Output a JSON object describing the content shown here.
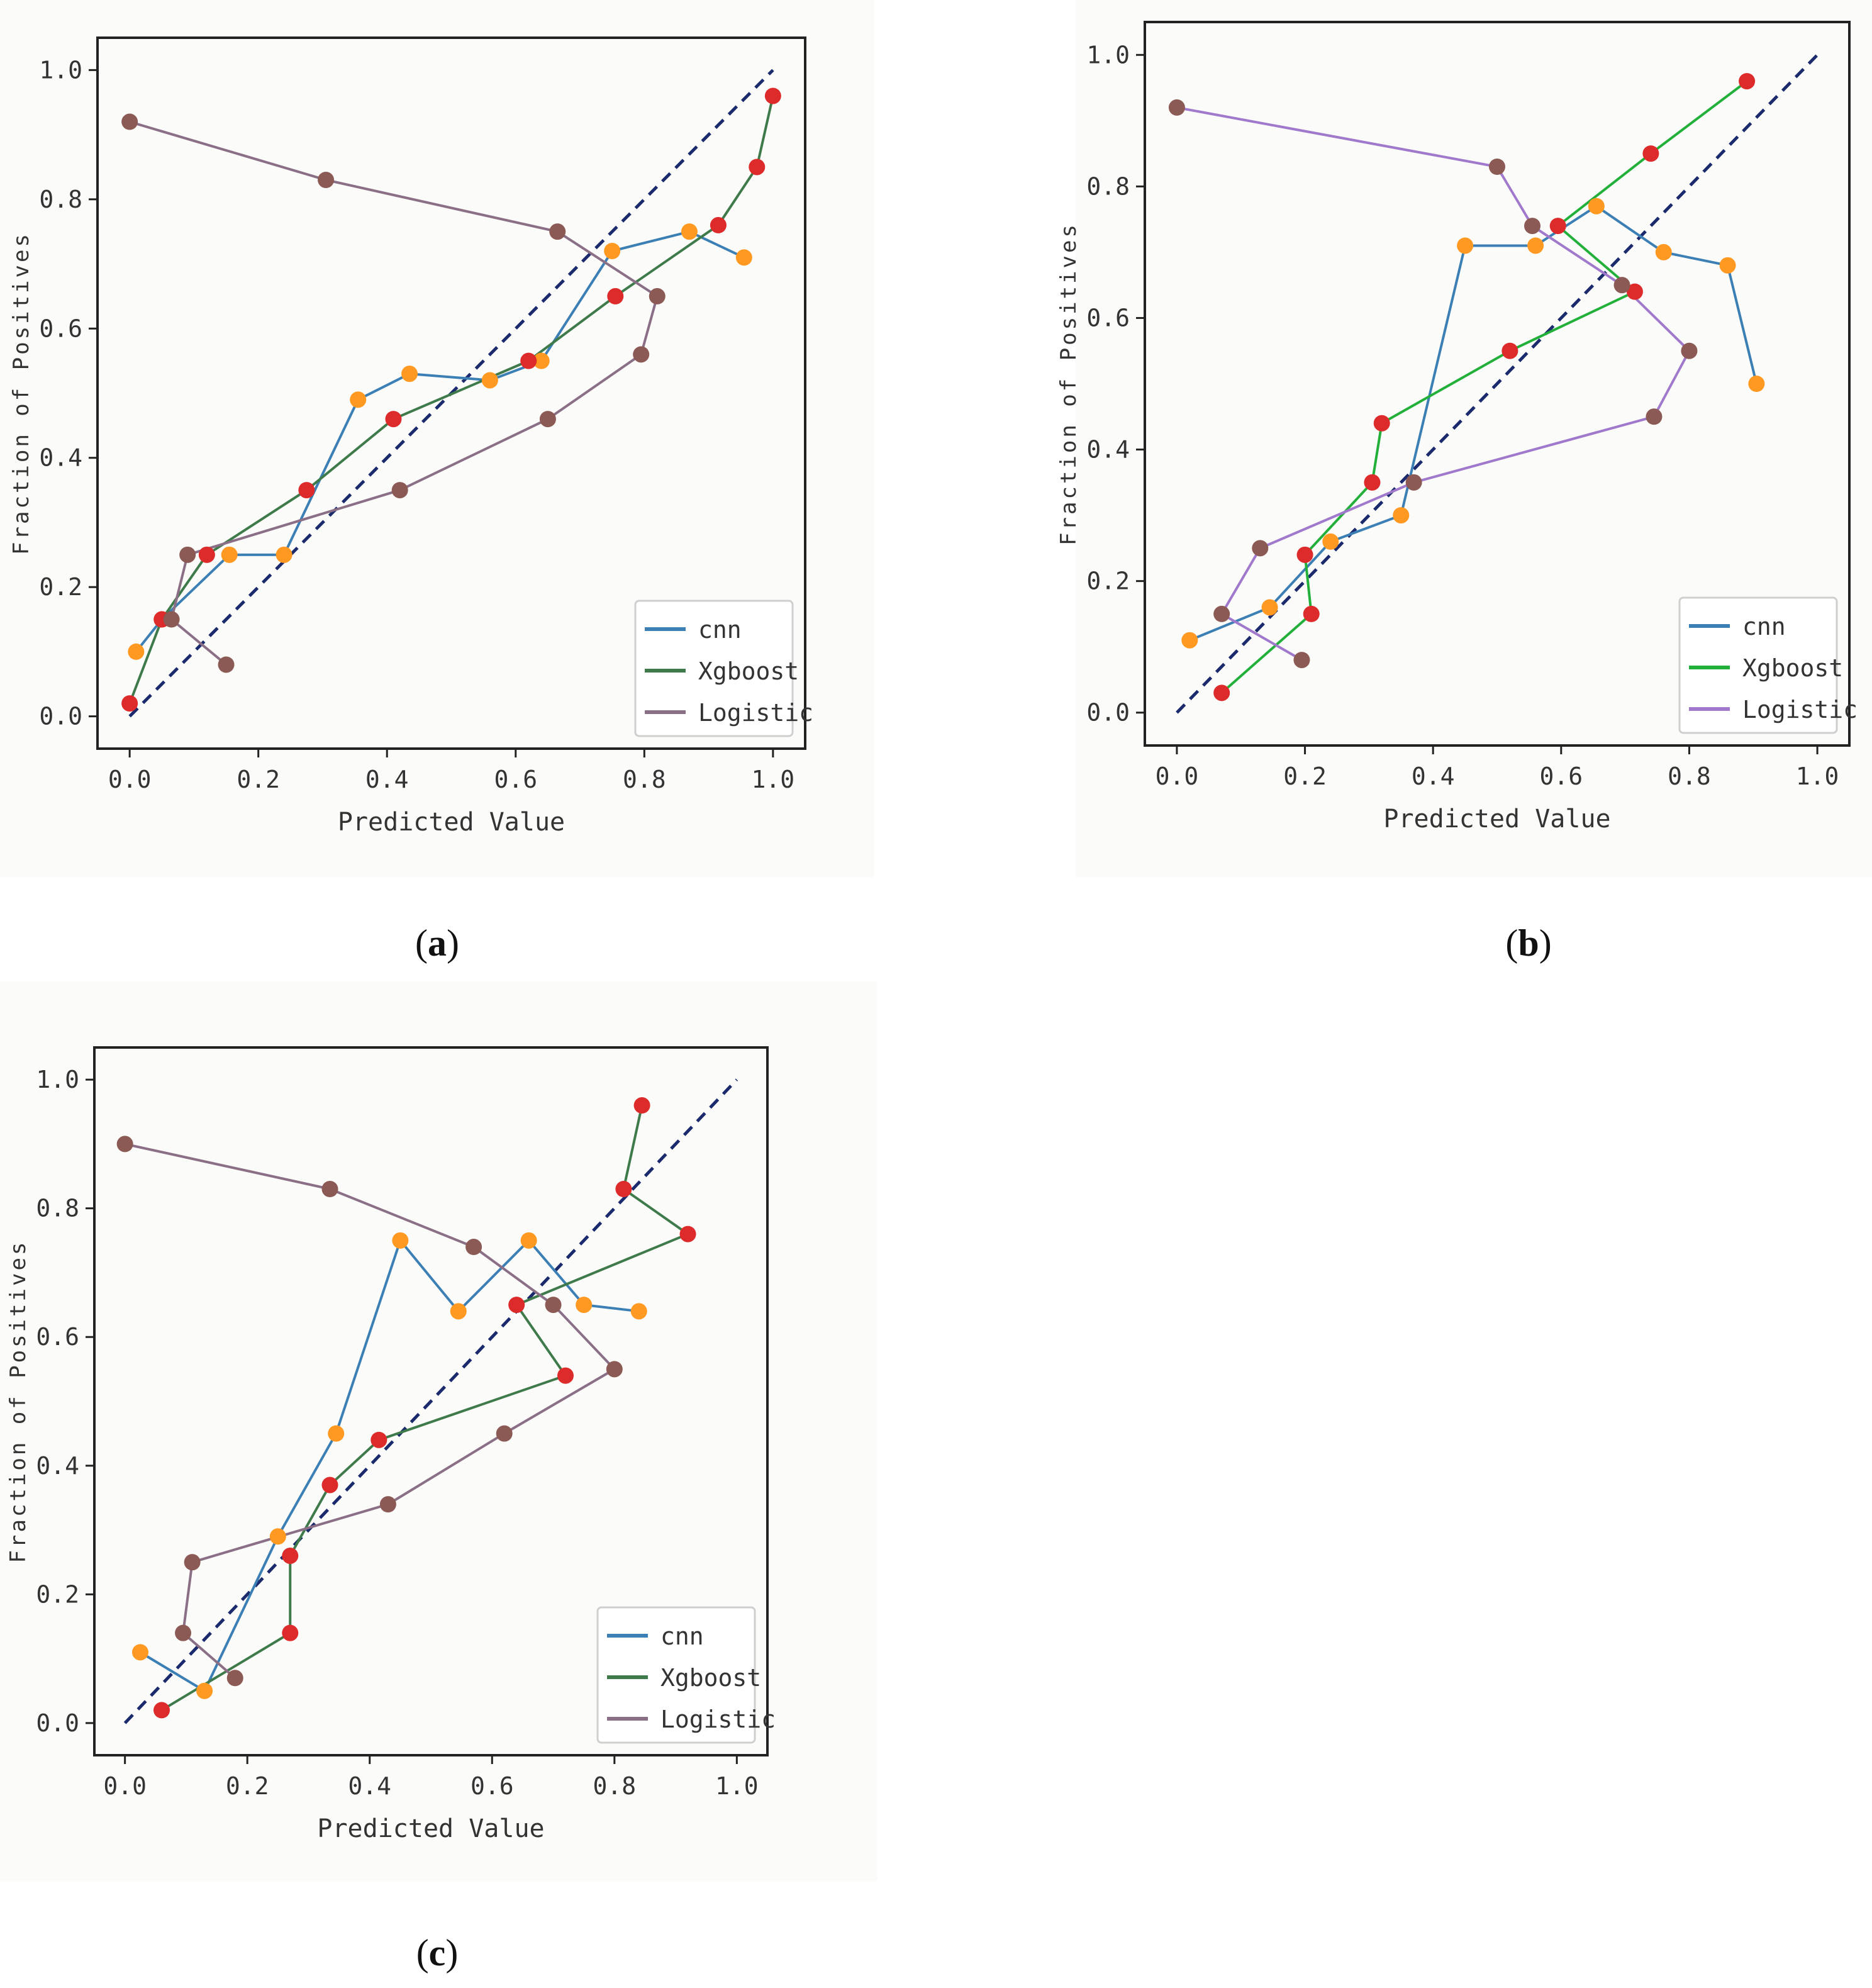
{
  "captions": [
    "a",
    "b",
    "c"
  ],
  "colors": {
    "cnn_line": "#3b7fb5",
    "xgb_line_a": "#3f7a4b",
    "xgb_line_b": "#22b03a",
    "log_line_a": "#8a6f86",
    "log_line_b": "#a079cc",
    "marker_cnn": "#ff9922",
    "marker_xgb": "#dd2a2a",
    "marker_log": "#8b5a55",
    "diagonal": "#1a2a6c"
  },
  "chart_data": [
    {
      "id": "a",
      "type": "line",
      "caption": "a",
      "xlabel": "Predicted Value",
      "ylabel": "Fraction of Positives",
      "xlim": [
        -0.05,
        1.05
      ],
      "ylim": [
        -0.05,
        1.05
      ],
      "xticks": [
        "0.0",
        "0.2",
        "0.4",
        "0.6",
        "0.8",
        "1.0"
      ],
      "yticks": [
        "0.0",
        "0.2",
        "0.4",
        "0.6",
        "0.8",
        "1.0"
      ],
      "legend": [
        "cnn",
        "Xgboost",
        "Logistic"
      ],
      "legend_position": "lower-right",
      "series": [
        {
          "name": "cnn",
          "x": [
            0.01,
            0.05,
            0.155,
            0.24,
            0.355,
            0.435,
            0.56,
            0.64,
            0.75,
            0.87,
            0.955
          ],
          "y": [
            0.1,
            0.15,
            0.25,
            0.25,
            0.49,
            0.53,
            0.52,
            0.55,
            0.72,
            0.75,
            0.71
          ]
        },
        {
          "name": "Xgboost",
          "x": [
            0.0,
            0.05,
            0.12,
            0.275,
            0.41,
            0.62,
            0.755,
            0.915,
            0.975,
            1.0
          ],
          "y": [
            0.02,
            0.15,
            0.25,
            0.35,
            0.46,
            0.55,
            0.65,
            0.76,
            0.85,
            0.96
          ]
        },
        {
          "name": "Logistic",
          "x": [
            0.15,
            0.065,
            0.09,
            0.42,
            0.65,
            0.795,
            0.82,
            0.665,
            0.305,
            0.0
          ],
          "y": [
            0.08,
            0.15,
            0.25,
            0.35,
            0.46,
            0.56,
            0.65,
            0.75,
            0.83,
            0.92
          ]
        }
      ]
    },
    {
      "id": "b",
      "type": "line",
      "caption": "b",
      "xlabel": "Predicted Value",
      "ylabel": "Fraction of Positives",
      "xlim": [
        -0.05,
        1.05
      ],
      "ylim": [
        -0.05,
        1.05
      ],
      "xticks": [
        "0.0",
        "0.2",
        "0.4",
        "0.6",
        "0.8",
        "1.0"
      ],
      "yticks": [
        "0.0",
        "0.2",
        "0.4",
        "0.6",
        "0.8",
        "1.0"
      ],
      "legend": [
        "cnn",
        "Xgboost",
        "Logistic"
      ],
      "legend_position": "lower-right",
      "series": [
        {
          "name": "cnn",
          "x": [
            0.02,
            0.145,
            0.24,
            0.35,
            0.45,
            0.56,
            0.655,
            0.76,
            0.86,
            0.905
          ],
          "y": [
            0.11,
            0.16,
            0.26,
            0.3,
            0.71,
            0.71,
            0.77,
            0.7,
            0.68,
            0.5
          ]
        },
        {
          "name": "Xgboost",
          "x": [
            0.07,
            0.21,
            0.2,
            0.305,
            0.32,
            0.52,
            0.715,
            0.595,
            0.74,
            0.89
          ],
          "y": [
            0.03,
            0.15,
            0.24,
            0.35,
            0.44,
            0.55,
            0.64,
            0.74,
            0.85,
            0.96
          ]
        },
        {
          "name": "Logistic",
          "x": [
            0.195,
            0.07,
            0.13,
            0.37,
            0.745,
            0.8,
            0.695,
            0.555,
            0.5,
            0.0
          ],
          "y": [
            0.08,
            0.15,
            0.25,
            0.35,
            0.45,
            0.55,
            0.65,
            0.74,
            0.83,
            0.92
          ]
        }
      ]
    },
    {
      "id": "c",
      "type": "line",
      "caption": "c",
      "xlabel": "Predicted Value",
      "ylabel": "Fraction of Positives",
      "xlim": [
        -0.05,
        1.05
      ],
      "ylim": [
        -0.05,
        1.05
      ],
      "xticks": [
        "0.0",
        "0.2",
        "0.4",
        "0.6",
        "0.8",
        "1.0"
      ],
      "yticks": [
        "0.0",
        "0.2",
        "0.4",
        "0.6",
        "0.8",
        "1.0"
      ],
      "legend": [
        "cnn",
        "Xgboost",
        "Logistic"
      ],
      "legend_position": "lower-right",
      "series": [
        {
          "name": "cnn",
          "x": [
            0.025,
            0.13,
            0.25,
            0.345,
            0.45,
            0.545,
            0.66,
            0.75,
            0.84
          ],
          "y": [
            0.11,
            0.05,
            0.29,
            0.45,
            0.75,
            0.64,
            0.75,
            0.65,
            0.64
          ]
        },
        {
          "name": "Xgboost",
          "x": [
            0.06,
            0.27,
            0.27,
            0.335,
            0.415,
            0.72,
            0.64,
            0.92,
            0.815,
            0.845
          ],
          "y": [
            0.02,
            0.14,
            0.26,
            0.37,
            0.44,
            0.54,
            0.65,
            0.76,
            0.83,
            0.96
          ]
        },
        {
          "name": "Logistic",
          "x": [
            0.18,
            0.095,
            0.11,
            0.43,
            0.62,
            0.8,
            0.7,
            0.57,
            0.335,
            0.0
          ],
          "y": [
            0.07,
            0.14,
            0.25,
            0.34,
            0.45,
            0.55,
            0.65,
            0.74,
            0.83,
            0.9
          ]
        }
      ]
    }
  ]
}
